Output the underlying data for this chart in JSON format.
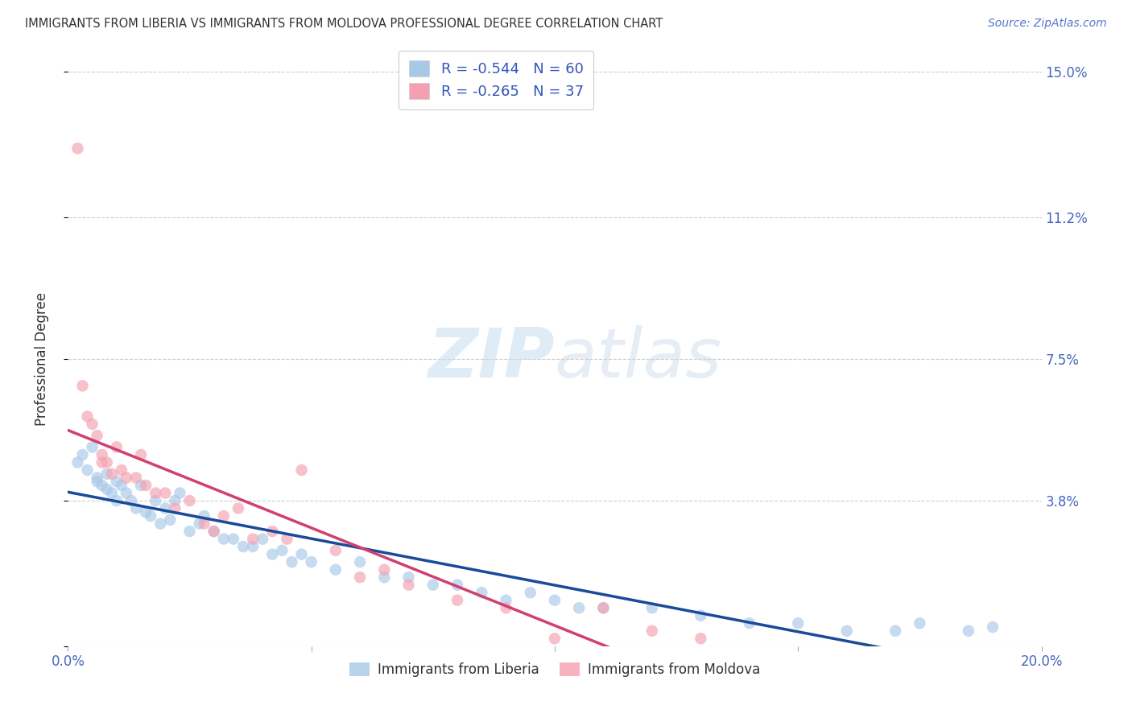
{
  "title": "IMMIGRANTS FROM LIBERIA VS IMMIGRANTS FROM MOLDOVA PROFESSIONAL DEGREE CORRELATION CHART",
  "source": "Source: ZipAtlas.com",
  "ylabel": "Professional Degree",
  "legend_label1": "Immigrants from Liberia",
  "legend_label2": "Immigrants from Moldova",
  "r1": "-0.544",
  "n1": "60",
  "r2": "-0.265",
  "n2": "37",
  "xlim": [
    0.0,
    0.2
  ],
  "ylim": [
    0.0,
    0.15
  ],
  "yticks": [
    0.0,
    0.038,
    0.075,
    0.112,
    0.15
  ],
  "ytick_labels": [
    "",
    "3.8%",
    "7.5%",
    "11.2%",
    "15.0%"
  ],
  "xticks": [
    0.0,
    0.05,
    0.1,
    0.15,
    0.2
  ],
  "xtick_labels": [
    "0.0%",
    "",
    "",
    "",
    "20.0%"
  ],
  "color_liberia": "#a8c8e8",
  "color_moldova": "#f4a0b0",
  "trend_color_liberia": "#1a4a9a",
  "trend_color_moldova": "#d04070",
  "background_color": "#ffffff",
  "liberia_x": [
    0.002,
    0.003,
    0.004,
    0.005,
    0.006,
    0.006,
    0.007,
    0.008,
    0.008,
    0.009,
    0.01,
    0.01,
    0.011,
    0.012,
    0.013,
    0.014,
    0.015,
    0.016,
    0.017,
    0.018,
    0.019,
    0.02,
    0.021,
    0.022,
    0.023,
    0.025,
    0.027,
    0.028,
    0.03,
    0.032,
    0.034,
    0.036,
    0.038,
    0.04,
    0.042,
    0.044,
    0.046,
    0.048,
    0.05,
    0.055,
    0.06,
    0.065,
    0.07,
    0.075,
    0.08,
    0.085,
    0.09,
    0.095,
    0.1,
    0.105,
    0.11,
    0.12,
    0.13,
    0.14,
    0.15,
    0.16,
    0.17,
    0.175,
    0.185,
    0.19
  ],
  "liberia_y": [
    0.048,
    0.05,
    0.046,
    0.052,
    0.044,
    0.043,
    0.042,
    0.045,
    0.041,
    0.04,
    0.043,
    0.038,
    0.042,
    0.04,
    0.038,
    0.036,
    0.042,
    0.035,
    0.034,
    0.038,
    0.032,
    0.036,
    0.033,
    0.038,
    0.04,
    0.03,
    0.032,
    0.034,
    0.03,
    0.028,
    0.028,
    0.026,
    0.026,
    0.028,
    0.024,
    0.025,
    0.022,
    0.024,
    0.022,
    0.02,
    0.022,
    0.018,
    0.018,
    0.016,
    0.016,
    0.014,
    0.012,
    0.014,
    0.012,
    0.01,
    0.01,
    0.01,
    0.008,
    0.006,
    0.006,
    0.004,
    0.004,
    0.006,
    0.004,
    0.005
  ],
  "moldova_x": [
    0.002,
    0.003,
    0.004,
    0.005,
    0.006,
    0.007,
    0.007,
    0.008,
    0.009,
    0.01,
    0.011,
    0.012,
    0.014,
    0.015,
    0.016,
    0.018,
    0.02,
    0.022,
    0.025,
    0.028,
    0.03,
    0.032,
    0.035,
    0.038,
    0.042,
    0.045,
    0.048,
    0.055,
    0.06,
    0.065,
    0.07,
    0.08,
    0.09,
    0.1,
    0.11,
    0.12,
    0.13
  ],
  "moldova_y": [
    0.13,
    0.068,
    0.06,
    0.058,
    0.055,
    0.05,
    0.048,
    0.048,
    0.045,
    0.052,
    0.046,
    0.044,
    0.044,
    0.05,
    0.042,
    0.04,
    0.04,
    0.036,
    0.038,
    0.032,
    0.03,
    0.034,
    0.036,
    0.028,
    0.03,
    0.028,
    0.046,
    0.025,
    0.018,
    0.02,
    0.016,
    0.012,
    0.01,
    0.002,
    0.01,
    0.004,
    0.002
  ]
}
